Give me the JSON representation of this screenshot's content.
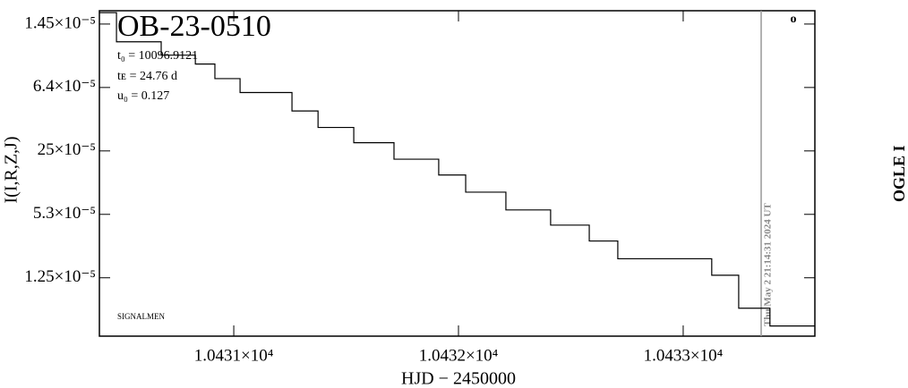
{
  "chart_data": {
    "type": "line",
    "title": "OB-23-0510",
    "annotations": [
      "t₀ = 10096.9121",
      "tᴇ = 24.76 d",
      "u₀ = 0.127",
      "SIGNALMEN",
      "Thu May  2 21:14:31 2024 UT",
      "OGLE I",
      "o"
    ],
    "xlabel": "HJD − 2450000",
    "ylabel": "I(I,R,Z,J)",
    "x": [
      10430.402,
      10430.478,
      10430.478,
      10430.677,
      10430.677,
      10430.829,
      10430.829,
      10430.916,
      10430.916,
      10431.028,
      10431.028,
      10431.147,
      10431.259,
      10431.259,
      10431.375,
      10431.375,
      10431.534,
      10431.534,
      10431.713,
      10431.713,
      10431.833,
      10431.912,
      10431.912,
      10432.032,
      10432.032,
      10432.211,
      10432.211,
      10432.331,
      10432.41,
      10432.41,
      10432.582,
      10432.582,
      10432.709,
      10432.709,
      10432.908,
      10433.028,
      10433.127,
      10433.127,
      10433.247,
      10433.247,
      10433.386,
      10433.386,
      10433.586
    ],
    "series": [
      {
        "name": "OGLE I",
        "color": "#000000",
        "values": [
          -0.18,
          -0.18,
          0.28,
          0.28,
          0.49,
          0.49,
          0.63,
          0.63,
          0.86,
          0.86,
          1.08,
          1.08,
          1.08,
          1.37,
          1.37,
          1.63,
          1.63,
          1.87,
          1.87,
          2.13,
          2.13,
          2.13,
          2.38,
          2.38,
          2.65,
          2.65,
          2.93,
          2.93,
          2.93,
          3.17,
          3.17,
          3.42,
          3.42,
          3.7,
          3.7,
          3.7,
          3.7,
          3.96,
          3.96,
          4.48,
          4.48,
          4.76,
          4.76
        ]
      }
    ],
    "vline": 10433.347,
    "xlim": [
      10430.402,
      10433.586
    ],
    "xticks": [
      {
        "value": 10431,
        "label": "1.0431×10⁴"
      },
      {
        "value": 10432,
        "label": "1.0432×10⁴"
      },
      {
        "value": 10433,
        "label": "1.0433×10⁴"
      }
    ],
    "ylim": [
      4.92,
      -0.21
    ],
    "yticks": [
      {
        "value": 0,
        "label": "1.45×10⁻⁵"
      },
      {
        "value": 1,
        "label": "6.4×10⁻⁵"
      },
      {
        "value": 2,
        "label": "25×10⁻⁵"
      },
      {
        "value": 3,
        "label": "5.3×10⁻⁵"
      },
      {
        "value": 4,
        "label": "1.25×10⁻⁵"
      }
    ]
  }
}
